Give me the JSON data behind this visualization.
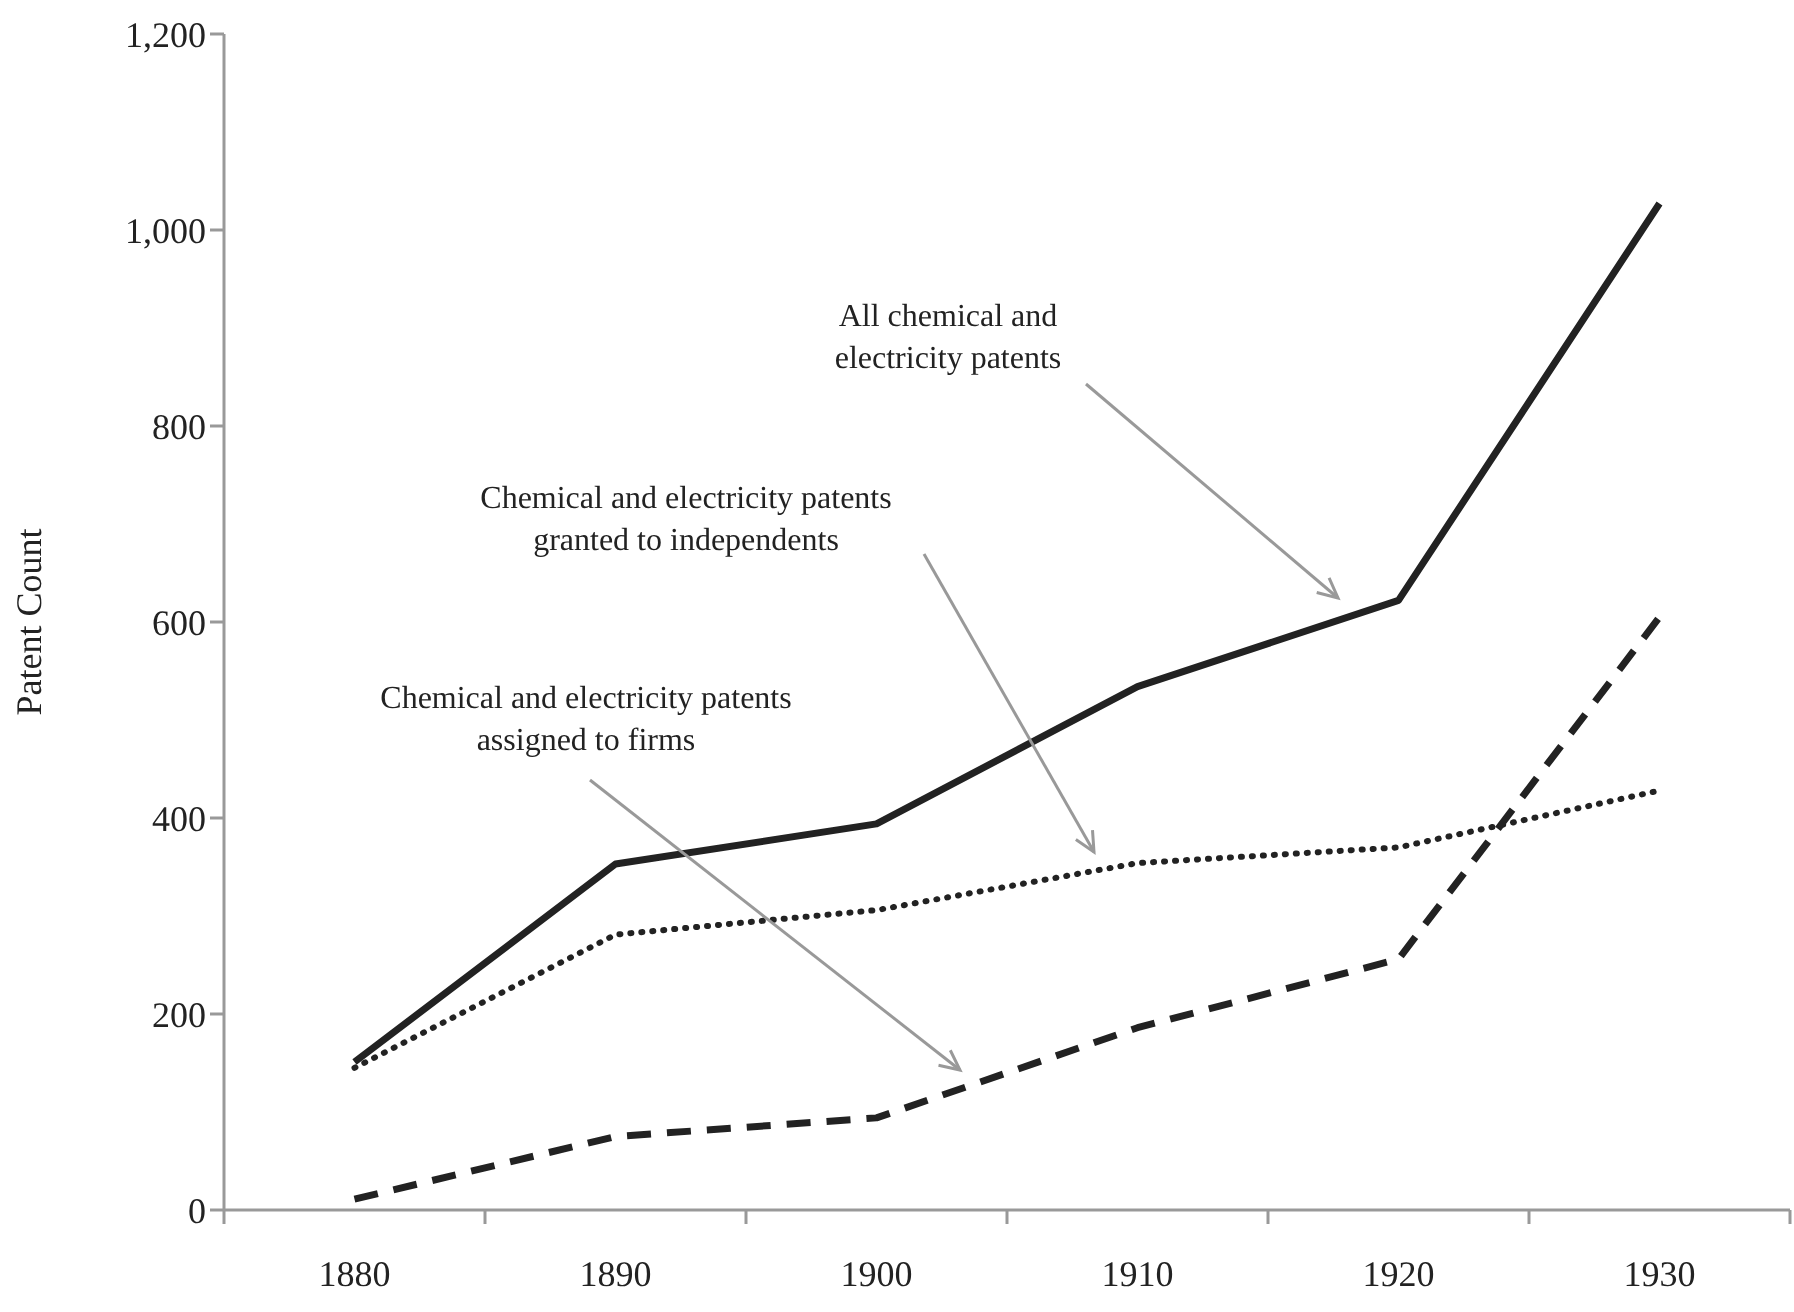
{
  "chart_data": {
    "type": "line",
    "ylabel": "Patent Count",
    "categories": [
      "1880",
      "1890",
      "1900",
      "1910",
      "1920",
      "1930"
    ],
    "series": [
      {
        "color": "#222222",
        "line_style": "solid",
        "values": [
          151,
          353,
          394,
          534,
          622,
          1027
        ]
      },
      {
        "color": "#222222",
        "line_style": "dotted",
        "values": [
          145,
          281,
          306,
          354,
          370,
          428
        ]
      },
      {
        "color": "#222222",
        "line_style": "dashed",
        "values": [
          11,
          75,
          94,
          186,
          256,
          605
        ]
      }
    ],
    "ylim": [
      0,
      1200
    ],
    "yticks": [
      0,
      {
        "value": 200,
        "label": "200"
      },
      {
        "value": 400,
        "label": "400"
      },
      {
        "value": 600,
        "label": "600"
      },
      {
        "value": 800,
        "label": "800"
      },
      {
        "value": 1000,
        "label": "1,000"
      },
      {
        "value": 1200,
        "label": "1,200"
      }
    ],
    "annotations": [
      "All chemical and\nelectricity patents",
      "Chemical and electricity patents\ngranted to independents",
      "Chemical and electricity patents\nassigned to firms"
    ],
    "grid": false,
    "legend": false,
    "marker": "none"
  }
}
